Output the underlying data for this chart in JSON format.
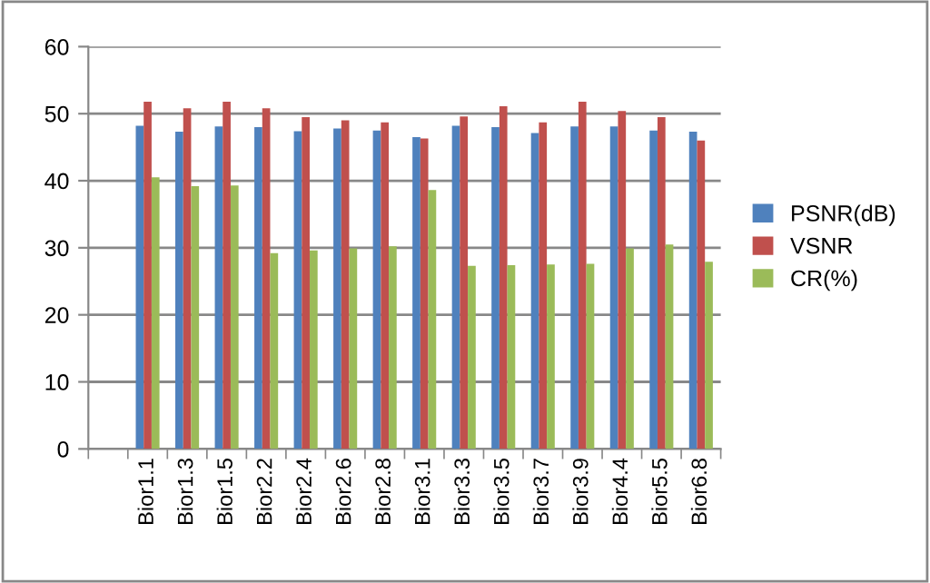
{
  "chart_data": {
    "type": "bar",
    "categories": [
      null,
      "Bior1.1",
      "Bior1.3",
      "Bior1.5",
      "Bior2.2",
      "Bior2.4",
      "Bior2.6",
      "Bior2.8",
      "Bior3.1",
      "Bior3.3",
      "Bior3.5",
      "Bior3.7",
      "Bior3.9",
      "Bior4.4",
      "Bior5.5",
      "Bior6.8"
    ],
    "series": [
      {
        "name": "PSNR(dB)",
        "color": "#4f81bd",
        "values": [
          null,
          48.2,
          47.3,
          48.1,
          48.0,
          47.4,
          47.8,
          47.5,
          46.5,
          48.2,
          48.0,
          47.1,
          48.1,
          48.1,
          47.5,
          47.3
        ]
      },
      {
        "name": "VSNR",
        "color": "#c0504d",
        "values": [
          null,
          51.8,
          50.8,
          51.8,
          50.8,
          49.5,
          49.0,
          48.7,
          46.3,
          49.6,
          51.1,
          48.7,
          51.8,
          50.4,
          49.5,
          46.0
        ]
      },
      {
        "name": "CR(%)",
        "color": "#9bbb59",
        "values": [
          null,
          40.5,
          39.2,
          39.3,
          29.2,
          29.6,
          29.9,
          30.2,
          38.6,
          27.3,
          27.4,
          27.5,
          27.6,
          29.9,
          30.5,
          27.9
        ]
      }
    ],
    "ylim": [
      0,
      60
    ],
    "yticks": [
      0,
      10,
      20,
      30,
      40,
      50,
      60
    ],
    "grid": "y",
    "legend": "right"
  }
}
